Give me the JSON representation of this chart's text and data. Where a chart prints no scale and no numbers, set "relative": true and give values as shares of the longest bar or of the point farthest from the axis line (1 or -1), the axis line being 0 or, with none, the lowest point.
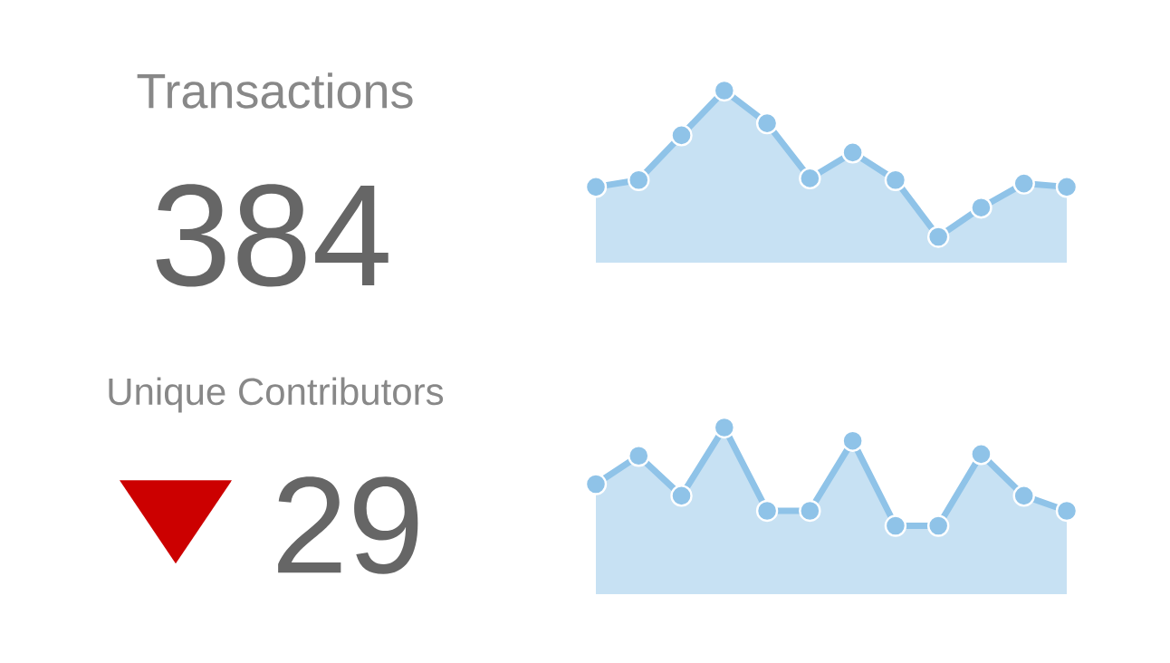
{
  "chart_data": [
    {
      "type": "area",
      "title": "Transactions",
      "annotations": [
        "384"
      ],
      "relative": true,
      "marker": "circle",
      "color": "#8fc3e8",
      "categories": [
        null,
        null,
        null,
        null,
        null,
        null,
        null,
        null,
        null,
        null,
        null,
        null
      ],
      "values": [
        0.44,
        0.48,
        0.74,
        1,
        0.81,
        0.49,
        0.64,
        0.48,
        0.15,
        0.32,
        0.46,
        0.44
      ]
    },
    {
      "type": "area",
      "title": "Unique Contributors",
      "annotations": [
        "29"
      ],
      "relative": true,
      "marker": "circle",
      "color": "#8fc3e8",
      "categories": [
        null,
        null,
        null,
        null,
        null,
        null,
        null,
        null,
        null,
        null,
        null,
        null
      ],
      "values": [
        0.66,
        0.83,
        0.59,
        1,
        0.5,
        0.5,
        0.92,
        0.41,
        0.41,
        0.84,
        0.59,
        0.5
      ]
    }
  ]
}
